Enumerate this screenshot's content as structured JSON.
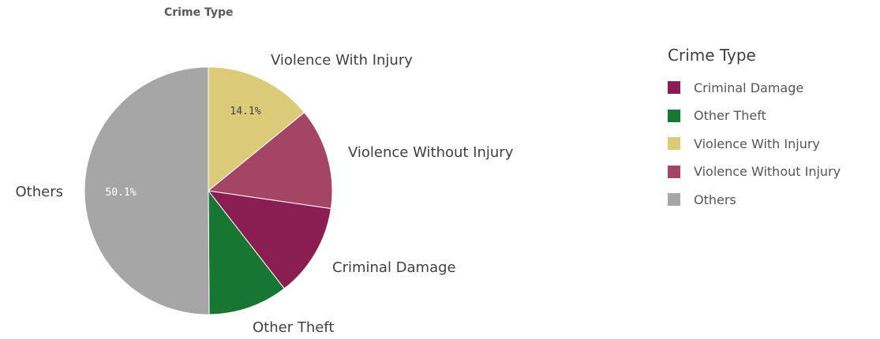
{
  "chart_data": {
    "type": "pie",
    "title": "Crime Type",
    "slices": [
      {
        "label": "Violence With Injury",
        "value": 14.1,
        "color": "#dbcb78",
        "show_pct": true
      },
      {
        "label": "Violence Without Injury",
        "value": 13.2,
        "color": "#a54566",
        "show_pct": false
      },
      {
        "label": "Criminal Damage",
        "value": 12.2,
        "color": "#8a1e53",
        "show_pct": false
      },
      {
        "label": "Other Theft",
        "value": 10.4,
        "color": "#177632",
        "show_pct": false
      },
      {
        "label": "Others",
        "value": 50.1,
        "color": "#a6a6a6",
        "show_pct": true
      }
    ],
    "legend": {
      "title": "Crime Type",
      "position": "right",
      "items": [
        {
          "label": "Criminal Damage",
          "color": "#8a1e53"
        },
        {
          "label": "Other Theft",
          "color": "#177632"
        },
        {
          "label": "Violence With Injury",
          "color": "#dbcb78"
        },
        {
          "label": "Violence Without Injury",
          "color": "#a54566"
        },
        {
          "label": "Others",
          "color": "#a6a6a6"
        }
      ]
    }
  }
}
